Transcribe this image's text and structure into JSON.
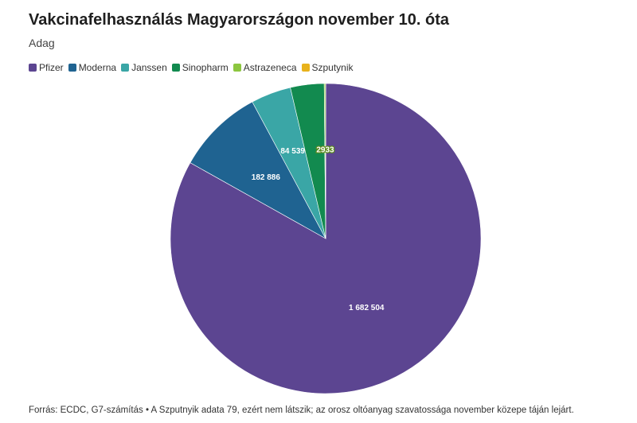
{
  "chart_data": {
    "type": "pie",
    "title": "Vakcinafelhasználás Magyarországon november 10. óta",
    "subtitle": "Adag",
    "series": [
      {
        "name": "Pfizer",
        "value": 1682504,
        "label": "1 682 504",
        "color": "#5c4591"
      },
      {
        "name": "Moderna",
        "value": 182886,
        "label": "182 886",
        "color": "#1f6391"
      },
      {
        "name": "Janssen",
        "value": 84539,
        "label": "84 539",
        "color": "#3aa6a6"
      },
      {
        "name": "Sinopharm",
        "value": 71000,
        "label": "",
        "color": "#128a4f"
      },
      {
        "name": "Astrazeneca",
        "value": 2933,
        "label": "2933",
        "color": "#8cc63f"
      },
      {
        "name": "Szputynik",
        "value": 79,
        "label": "",
        "color": "#e8b21c"
      }
    ],
    "legend_position": "top-left"
  },
  "footer": "Forrás: ECDC, G7-számítás • A Szputnyik adata 79, ezért nem látszik; az orosz oltóanyag szavatossága november közepe táján lejárt."
}
